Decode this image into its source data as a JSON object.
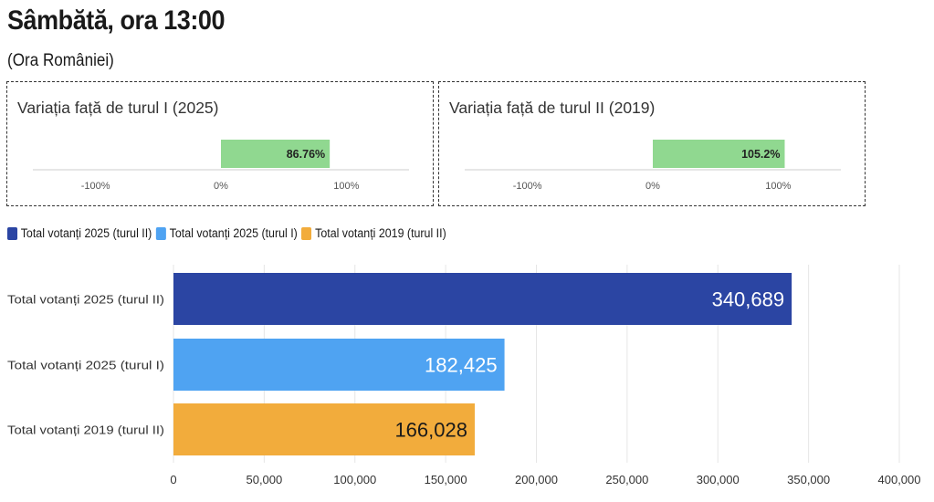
{
  "header": {
    "title": "Sâmbătă, ora 13:00",
    "subtitle": "(Ora României)"
  },
  "variation_panels": [
    {
      "title": "Variația față de turul I (2025)",
      "value": 86.76,
      "value_label": "86.76%",
      "ticks": [
        "-100%",
        "0%",
        "100%"
      ],
      "range": [
        -150,
        150
      ]
    },
    {
      "title": "Variația față de turul II (2019)",
      "value": 105.2,
      "value_label": "105.2%",
      "ticks": [
        "-100%",
        "0%",
        "100%"
      ],
      "range": [
        -150,
        150
      ]
    }
  ],
  "legend": [
    {
      "label": "Total votanți 2025 (turul II)",
      "color": "#2b45a3"
    },
    {
      "label": "Total votanți 2025 (turul I)",
      "color": "#4fa3f2"
    },
    {
      "label": "Total votanți 2019 (turul II)",
      "color": "#f2ac3c"
    }
  ],
  "chart_data": {
    "type": "bar",
    "orientation": "horizontal",
    "categories": [
      "Total votanți 2025 (turul II)",
      "Total votanți 2025 (turul I)",
      "Total votanți 2019 (turul II)"
    ],
    "values": [
      340689,
      182425,
      166028
    ],
    "value_labels": [
      "340,689",
      "182,425",
      "166,028"
    ],
    "colors": [
      "#2b45a3",
      "#4fa3f2",
      "#f2ac3c"
    ],
    "label_colors": [
      "#ffffff",
      "#ffffff",
      "#1a1a1a"
    ],
    "xlim": [
      0,
      400000
    ],
    "xticks": [
      0,
      50000,
      100000,
      150000,
      200000,
      250000,
      300000,
      350000,
      400000
    ],
    "xtick_labels": [
      "0",
      "50,000",
      "100,000",
      "150,000",
      "200,000",
      "250,000",
      "300,000",
      "350,000",
      "400,000"
    ],
    "grid": true,
    "variation_series": [
      {
        "name": "Variația față de turul I (2025)",
        "value": 86.76
      },
      {
        "name": "Variația față de turul II (2019)",
        "value": 105.2
      }
    ]
  }
}
